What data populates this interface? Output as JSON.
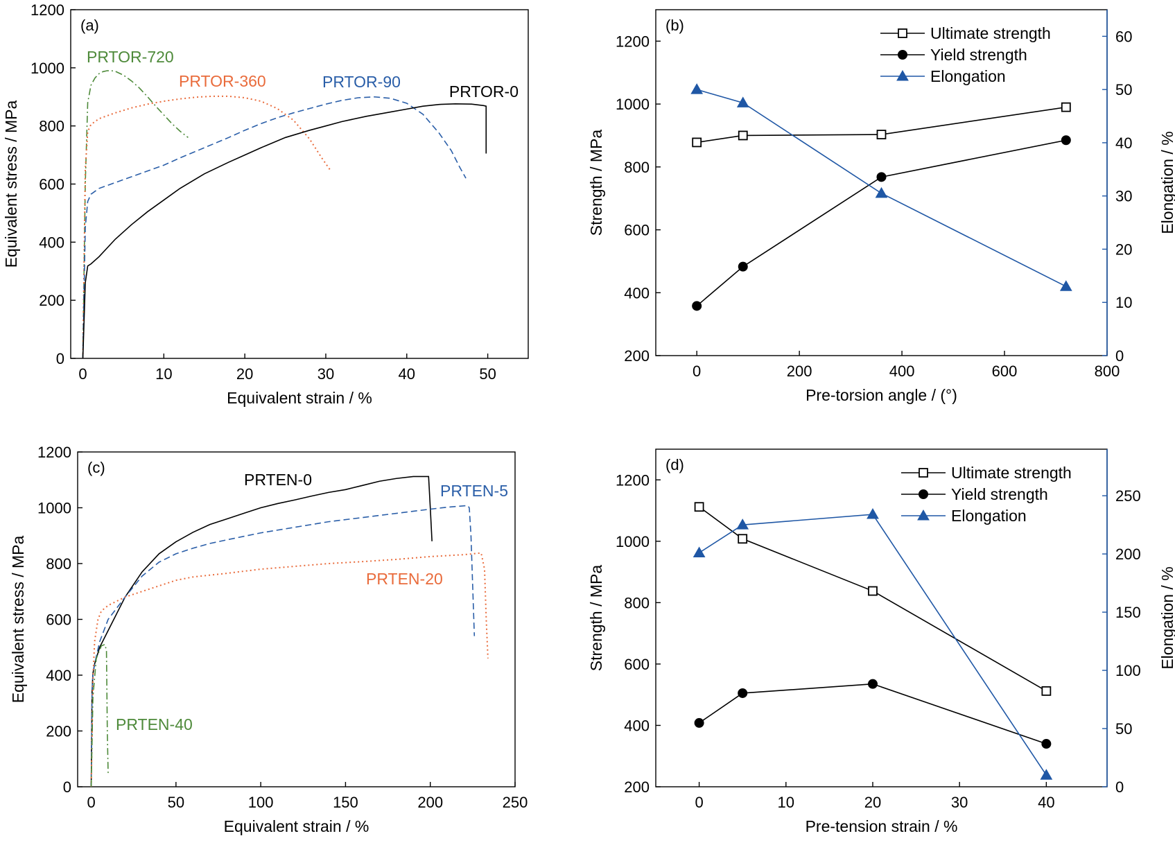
{
  "chart_data": [
    {
      "panel": "(a)",
      "type": "line",
      "xlabel": "Equivalent strain / %",
      "ylabel": "Equivalent stress / MPa",
      "xlim": [
        -1.5,
        55
      ],
      "ylim": [
        0,
        1200
      ],
      "xticks": [
        0,
        10,
        20,
        30,
        40,
        50
      ],
      "yticks": [
        0,
        200,
        400,
        600,
        800,
        1000,
        1200
      ],
      "series": [
        {
          "name": "PRTOR-720",
          "color": "#4e8a3a",
          "dash": "10,4,2,4",
          "x": [
            0,
            0.3,
            0.6,
            1,
            1.5,
            2,
            2.5,
            3,
            3.5,
            4,
            5,
            6,
            7,
            8,
            9,
            10,
            11,
            12,
            13
          ],
          "y": [
            0,
            600,
            880,
            940,
            965,
            980,
            987,
            990,
            990,
            988,
            975,
            955,
            930,
            900,
            868,
            838,
            808,
            782,
            760
          ]
        },
        {
          "name": "PRTOR-360",
          "color": "#e96b3b",
          "dash": "2,4",
          "x": [
            0,
            0.3,
            0.6,
            1,
            2,
            4,
            6,
            8,
            10,
            12,
            14,
            16,
            18,
            20,
            22,
            24,
            26,
            28,
            29.5,
            30.5
          ],
          "y": [
            0,
            650,
            780,
            805,
            825,
            845,
            862,
            875,
            885,
            893,
            899,
            902,
            902,
            897,
            885,
            860,
            820,
            755,
            690,
            650
          ]
        },
        {
          "name": "PRTOR-90",
          "color": "#2a5ea8",
          "dash": "9,5",
          "x": [
            0,
            0.3,
            0.6,
            1,
            2,
            4,
            6,
            8,
            10,
            12,
            15,
            18,
            20,
            22,
            24,
            26,
            28,
            30,
            32,
            34,
            36,
            38,
            40,
            42,
            44,
            45.5,
            46.5,
            47.3
          ],
          "y": [
            0,
            450,
            540,
            565,
            585,
            605,
            625,
            645,
            665,
            690,
            725,
            760,
            785,
            808,
            828,
            845,
            860,
            875,
            888,
            897,
            900,
            895,
            878,
            840,
            775,
            715,
            660,
            620
          ]
        },
        {
          "name": "PRTOR-0",
          "color": "#000000",
          "dash": "",
          "x": [
            0,
            0.3,
            0.6,
            1,
            2,
            4,
            6,
            8,
            10,
            12,
            15,
            18,
            20,
            22,
            25,
            28,
            30,
            32,
            35,
            38,
            40,
            42,
            44,
            46,
            48,
            49.5,
            49.8,
            49.8
          ],
          "y": [
            0,
            260,
            318,
            325,
            350,
            410,
            460,
            505,
            545,
            585,
            635,
            675,
            700,
            725,
            760,
            785,
            800,
            815,
            833,
            848,
            858,
            868,
            874,
            876,
            875,
            870,
            868,
            705
          ]
        }
      ]
    },
    {
      "panel": "(b)",
      "type": "line",
      "xlabel": "Pre-torsion angle / (°)",
      "ylabel": "Strength / MPa",
      "y2label": "Elongation / %",
      "xlim": [
        -80,
        800
      ],
      "ylim": [
        200,
        1300
      ],
      "y2lim": [
        0,
        65
      ],
      "xticks": [
        0,
        200,
        400,
        600,
        800
      ],
      "yticks": [
        200,
        400,
        600,
        800,
        1000,
        1200
      ],
      "y2ticks": [
        0,
        10,
        20,
        30,
        40,
        50,
        60
      ],
      "x": [
        0,
        90,
        360,
        720
      ],
      "series": [
        {
          "name": "Ultimate strength",
          "axis": "left",
          "marker": "square-open",
          "color": "#000000",
          "values": [
            878,
            900,
            903,
            990
          ]
        },
        {
          "name": "Yield strength",
          "axis": "left",
          "marker": "circle-filled",
          "color": "#000000",
          "values": [
            358,
            483,
            768,
            885
          ]
        },
        {
          "name": "Elongation",
          "axis": "right",
          "marker": "triangle-filled",
          "color": "#1f57a5",
          "values": [
            50,
            47.5,
            30.5,
            13
          ]
        }
      ]
    },
    {
      "panel": "(c)",
      "type": "line",
      "xlabel": "Equivalent strain / %",
      "ylabel": "Equivalent stress / MPa",
      "xlim": [
        -8,
        250
      ],
      "ylim": [
        0,
        1200
      ],
      "xticks": [
        0,
        50,
        100,
        150,
        200,
        250
      ],
      "yticks": [
        0,
        200,
        400,
        600,
        800,
        1000,
        1200
      ],
      "series": [
        {
          "name": "PRTEN-0",
          "color": "#000000",
          "dash": "",
          "x": [
            0,
            0.5,
            1,
            2,
            5,
            10,
            15,
            20,
            30,
            40,
            50,
            60,
            70,
            80,
            90,
            100,
            110,
            120,
            130,
            140,
            150,
            160,
            170,
            180,
            190,
            199,
            200,
            201
          ],
          "y": [
            0,
            340,
            405,
            440,
            500,
            560,
            620,
            680,
            770,
            835,
            878,
            912,
            940,
            960,
            980,
            1000,
            1015,
            1028,
            1042,
            1055,
            1065,
            1080,
            1095,
            1105,
            1112,
            1112,
            1000,
            880
          ]
        },
        {
          "name": "PRTEN-5",
          "color": "#2a5ea8",
          "dash": "9,5",
          "x": [
            0,
            0.5,
            1,
            2,
            5,
            10,
            15,
            20,
            30,
            40,
            50,
            60,
            70,
            80,
            100,
            120,
            140,
            160,
            180,
            200,
            210,
            222,
            223,
            224,
            226
          ],
          "y": [
            0,
            330,
            400,
            440,
            520,
            600,
            640,
            680,
            755,
            805,
            835,
            855,
            872,
            885,
            910,
            930,
            950,
            965,
            980,
            995,
            1002,
            1008,
            1000,
            900,
            540
          ]
        },
        {
          "name": "PRTEN-20",
          "color": "#e96b3b",
          "dash": "2,4",
          "x": [
            0,
            1,
            2,
            4,
            6,
            10,
            15,
            20,
            30,
            40,
            50,
            60,
            80,
            100,
            120,
            140,
            160,
            180,
            200,
            220,
            230,
            232,
            233,
            234
          ],
          "y": [
            0,
            380,
            520,
            600,
            630,
            650,
            665,
            680,
            700,
            720,
            740,
            752,
            765,
            780,
            790,
            800,
            807,
            815,
            825,
            832,
            838,
            780,
            600,
            460
          ]
        },
        {
          "name": "PRTEN-40",
          "color": "#4e8a3a",
          "dash": "10,4,2,4",
          "x": [
            0,
            1,
            3,
            6,
            8,
            9,
            9.5,
            10
          ],
          "y": [
            0,
            320,
            460,
            505,
            510,
            490,
            200,
            45
          ]
        }
      ]
    },
    {
      "panel": "(d)",
      "type": "line",
      "xlabel": "Pre-tension strain / %",
      "ylabel": "Strength / MPa",
      "y2label": "Elongation / %",
      "xlim": [
        -5,
        47
      ],
      "ylim": [
        200,
        1300
      ],
      "y2lim": [
        0,
        290
      ],
      "xticks": [
        0,
        10,
        20,
        30,
        40
      ],
      "yticks": [
        200,
        400,
        600,
        800,
        1000,
        1200
      ],
      "y2ticks": [
        0,
        50,
        100,
        150,
        200,
        250
      ],
      "x": [
        0,
        5,
        20,
        40
      ],
      "series": [
        {
          "name": "Ultimate strength",
          "axis": "left",
          "marker": "square-open",
          "color": "#000000",
          "values": [
            1112,
            1008,
            838,
            512
          ]
        },
        {
          "name": "Yield strength",
          "axis": "left",
          "marker": "circle-filled",
          "color": "#000000",
          "values": [
            408,
            505,
            535,
            340
          ]
        },
        {
          "name": "Elongation",
          "axis": "right",
          "marker": "triangle-filled",
          "color": "#1f57a5",
          "values": [
            201,
            225,
            234,
            10
          ]
        }
      ]
    }
  ]
}
